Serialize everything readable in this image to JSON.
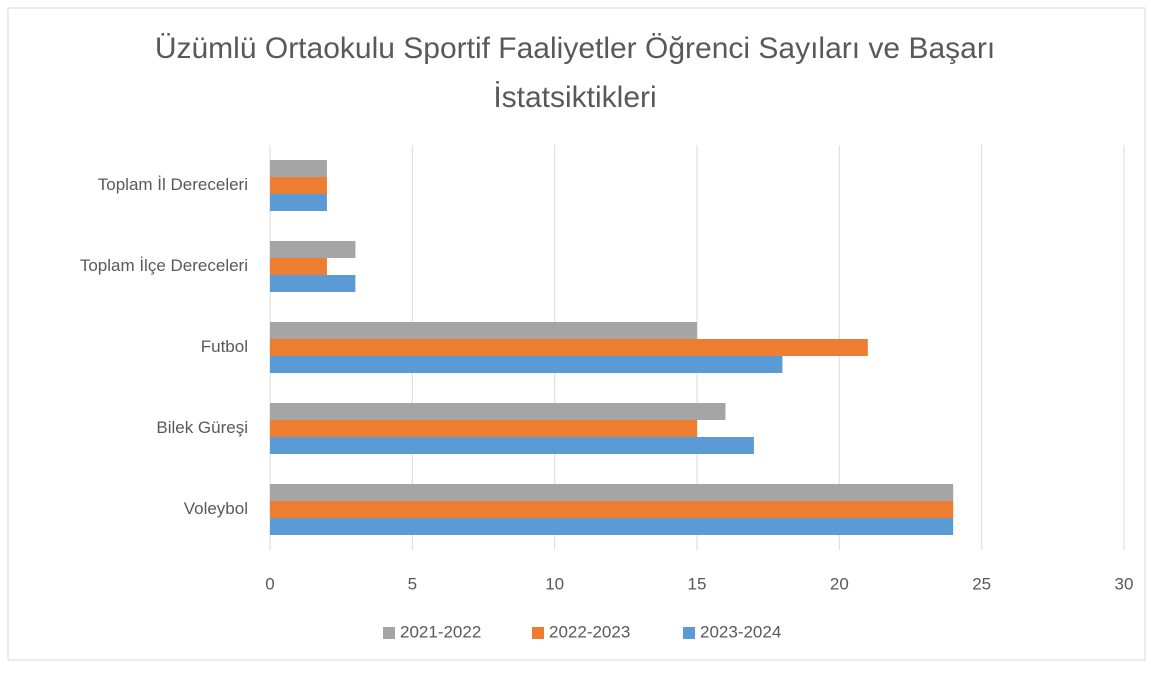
{
  "chart_data": {
    "type": "bar",
    "orientation": "horizontal",
    "title": "Üzümlü Ortaokulu Sportif Faaliyetler Öğrenci Sayıları ve Başarı İstatsiktikleri",
    "categories": [
      "Voleybol",
      "Bilek Güreşi",
      "Futbol",
      "Toplam İlçe Dereceleri",
      "Toplam İl Dereceleri"
    ],
    "series": [
      {
        "name": "2021-2022",
        "color": "#a5a5a5",
        "values": [
          24,
          16,
          15,
          3,
          2
        ]
      },
      {
        "name": "2022-2023",
        "color": "#ed7d31",
        "values": [
          24,
          15,
          21,
          2,
          2
        ]
      },
      {
        "name": "2023-2024",
        "color": "#5b9bd5",
        "values": [
          24,
          17,
          18,
          3,
          2
        ]
      }
    ],
    "xlim": [
      0,
      30
    ],
    "xticks": [
      0,
      5,
      10,
      15,
      20,
      25,
      30
    ],
    "grid": true,
    "legend": "bottom"
  }
}
